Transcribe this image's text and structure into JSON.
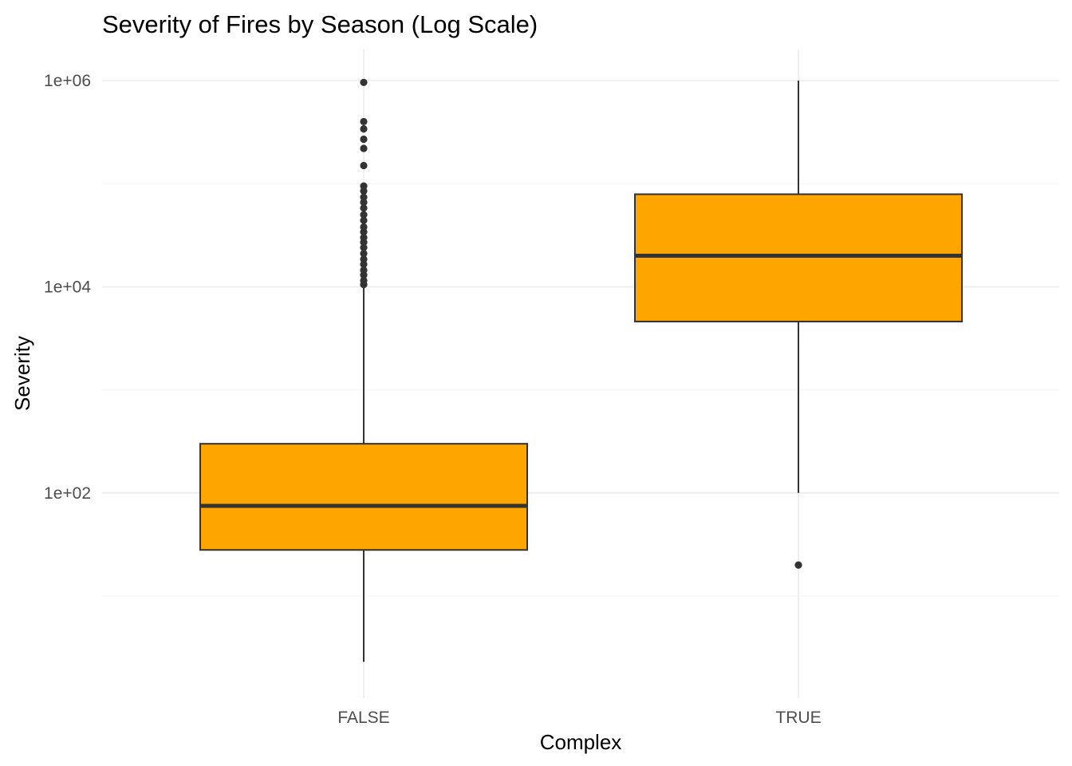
{
  "chart_data": {
    "type": "boxplot",
    "title": "Severity of Fires by Season (Log Scale)",
    "xlabel": "Complex",
    "ylabel": "Severity",
    "y_scale": "log10",
    "ylim": [
      1.6,
      2000000
    ],
    "y_ticks": [
      {
        "value": 100,
        "label": "1e+02"
      },
      {
        "value": 10000,
        "label": "1e+04"
      },
      {
        "value": 1000000,
        "label": "1e+06"
      }
    ],
    "y_minor_ticks": [
      10,
      1000,
      100000
    ],
    "categories": [
      "FALSE",
      "TRUE"
    ],
    "grid": true,
    "legend": "none",
    "box_fill": "#FFA500",
    "line_color": "#333333",
    "boxes": [
      {
        "category": "FALSE",
        "whisker_low": 2.3,
        "q1": 28,
        "median": 75,
        "q3": 300,
        "whisker_high": 10000,
        "outliers": [
          10500,
          11500,
          13000,
          14500,
          16500,
          18500,
          21000,
          24000,
          27000,
          30000,
          34000,
          38000,
          44000,
          50000,
          58000,
          66000,
          74000,
          85000,
          95000,
          150000,
          220000,
          270000,
          340000,
          400000,
          960000
        ]
      },
      {
        "category": "TRUE",
        "whisker_low": 100,
        "q1": 4600,
        "median": 20000,
        "q3": 79000,
        "whisker_high": 1000000,
        "outliers": [
          20
        ]
      }
    ]
  }
}
